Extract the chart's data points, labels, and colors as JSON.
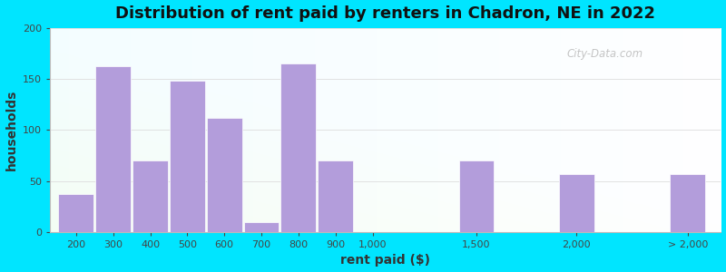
{
  "title": "Distribution of rent paid by renters in Chadron, NE in 2022",
  "xlabel": "rent paid ($)",
  "ylabel": "households",
  "bar_color": "#b39ddb",
  "outer_background": "#00e5ff",
  "ylim": [
    0,
    200
  ],
  "yticks": [
    0,
    50,
    100,
    150,
    200
  ],
  "categories": [
    "200",
    "300",
    "400",
    "500",
    "600",
    "700",
    "800",
    "900",
    "1,000",
    "1,500",
    "2,000",
    "> 2,000"
  ],
  "values": [
    37,
    162,
    70,
    148,
    112,
    10,
    165,
    70,
    0,
    70,
    57,
    57
  ],
  "title_fontsize": 13,
  "axis_label_fontsize": 10,
  "tick_fontsize": 8,
  "watermark_text": "City-Data.com"
}
